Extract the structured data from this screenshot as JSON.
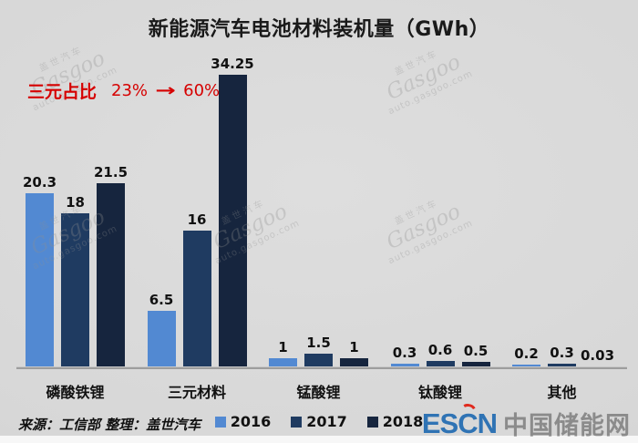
{
  "title": "新能源汽车电池材料装机量（GWh）",
  "annotation": {
    "label": "三元占比",
    "from": "23%",
    "arrow": "→",
    "to": "60%",
    "color": "#d60000"
  },
  "chart_data": {
    "type": "bar",
    "title": "新能源汽车电池材料装机量（GWh）",
    "categories": [
      "磷酸铁锂",
      "三元材料",
      "锰酸锂",
      "钛酸锂",
      "其他"
    ],
    "series": [
      {
        "name": "2016",
        "color": "#5289d2",
        "values": [
          20.3,
          6.5,
          1,
          0.3,
          0.2
        ]
      },
      {
        "name": "2017",
        "color": "#1f3b61",
        "values": [
          18,
          16,
          1.5,
          0.6,
          0.3
        ]
      },
      {
        "name": "2018",
        "color": "#16253e",
        "values": [
          21.5,
          34.25,
          1,
          0.5,
          0.03
        ]
      }
    ],
    "xlabel": "",
    "ylabel": "",
    "ylim": [
      0,
      34.25
    ],
    "grid": false,
    "legend_position": "bottom",
    "value_labels": true
  },
  "footer": {
    "source": "来源：工信部 整理：盖世汽车",
    "logo": {
      "e_s": "ES",
      "c": "C",
      "n": "N",
      "site": "中国储能网"
    }
  },
  "watermark": {
    "brand": "盖世汽车",
    "name": "Gasgoo",
    "url": "auto.gasgoo.com"
  },
  "colors": {
    "background": "#d9d9d9",
    "axis": "#9d9d9d",
    "annotation_red": "#d60000",
    "logo_blue": "#2f73b4",
    "logo_gray": "#8b8b8b",
    "series_2016": "#5289d2",
    "series_2017": "#1f3b61",
    "series_2018": "#16253e"
  }
}
